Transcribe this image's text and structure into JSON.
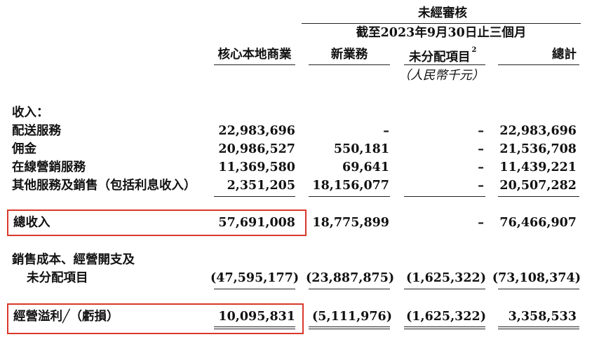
{
  "header": {
    "status": "未經審核",
    "period": "截至2023年9月30日止三個月",
    "columns": [
      "核心本地商業",
      "新業務",
      "未分配項目",
      "總計"
    ],
    "footnote_mark": "2",
    "unit": "（人民幣千元）"
  },
  "revenue_section": {
    "label": "收入：",
    "rows": [
      {
        "label": "配送服務",
        "values": [
          "22,983,696",
          "–",
          "–",
          "22,983,696"
        ]
      },
      {
        "label": "佣金",
        "values": [
          "20,986,527",
          "550,181",
          "–",
          "21,536,708"
        ]
      },
      {
        "label": "在線營銷服務",
        "values": [
          "11,369,580",
          "69,641",
          "–",
          "11,439,221"
        ]
      },
      {
        "label": "其他服務及銷售（包括利息收入）",
        "values": [
          "2,351,205",
          "18,156,077",
          "–",
          "20,507,282"
        ]
      }
    ]
  },
  "total_revenue": {
    "label": "總收入",
    "values": [
      "57,691,008",
      "18,775,899",
      "–",
      "76,466,907"
    ]
  },
  "costs": {
    "label_line1": "銷售成本、經營開支及",
    "label_line2": "未分配項目",
    "values": [
      "(47,595,177)",
      "(23,887,875)",
      "(1,625,322)",
      "(73,108,374)"
    ]
  },
  "operating_profit": {
    "label": "經營溢利╱（虧損）",
    "values": [
      "10,095,831",
      "(5,111,976)",
      "(1,625,322)",
      "3,358,533"
    ]
  },
  "colors": {
    "highlight": "#d9392b",
    "text": "#111111"
  }
}
